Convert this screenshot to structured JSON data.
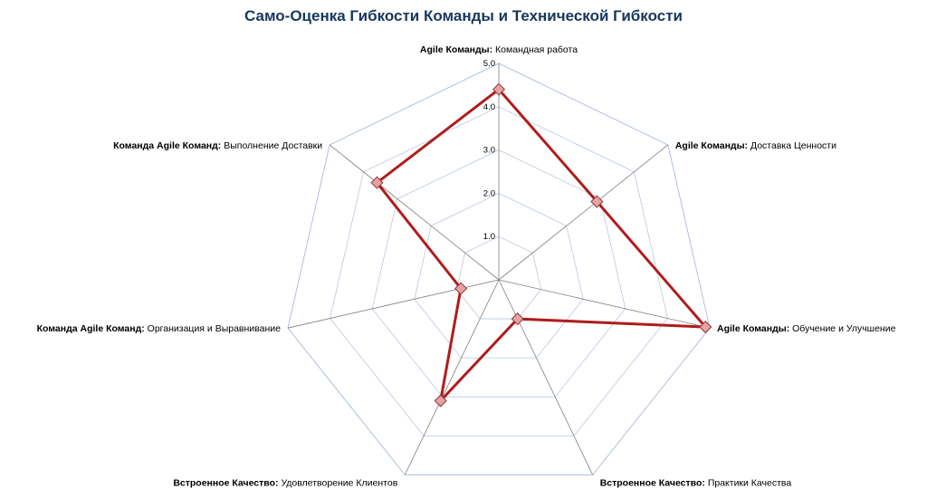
{
  "chart_data": {
    "type": "radar",
    "title": "Само-Оценка Гибкости Команды и Технической Гибкости",
    "axes": [
      {
        "bold": "Agile Команды:",
        "text": " Командная работа"
      },
      {
        "bold": "Agile Команды:",
        "text": " Доставка Ценности"
      },
      {
        "bold": "Agile Команды:",
        "text": " Обучение и Улучшение"
      },
      {
        "bold": "Встроенное Качество:",
        "text": " Практики Качества"
      },
      {
        "bold": "Встроенное Качество:",
        "text": " Удовлетворение Клиентов"
      },
      {
        "bold": "Команда Agile Команд:",
        "text": " Организация и Выравнивание"
      },
      {
        "bold": "Команда Agile Команд:",
        "text": " Выполнение Доставки"
      }
    ],
    "tick_labels": [
      "1.0",
      "2.0",
      "3.0",
      "4.0",
      "5.0"
    ],
    "rlim": [
      0,
      5
    ],
    "series": [
      {
        "values": [
          4.4,
          2.9,
          4.9,
          1.0,
          3.1,
          0.9,
          3.6
        ],
        "color": "#b01c1c",
        "marker_color": "#e8a0a0"
      }
    ],
    "grid": true,
    "legend": "none"
  }
}
